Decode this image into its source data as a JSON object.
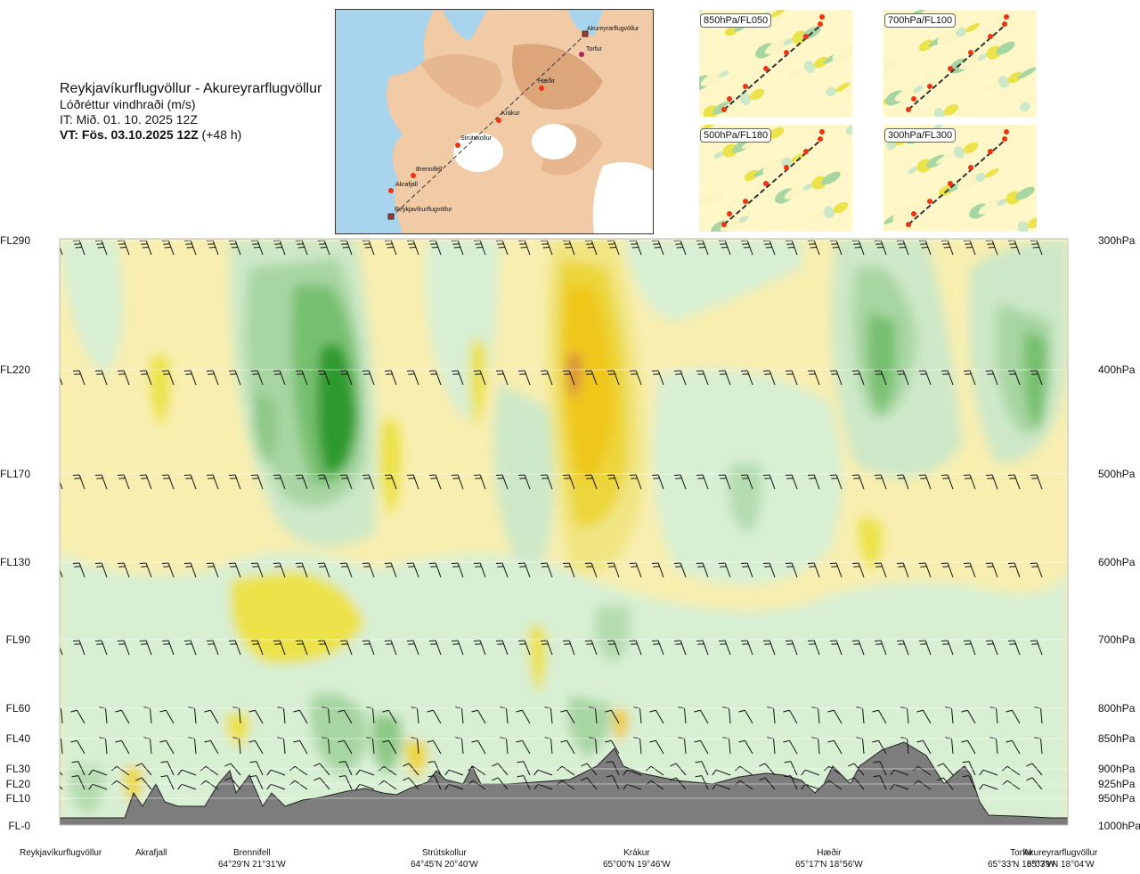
{
  "header": {
    "route_title": "Reykjavíkurflugvöllur - Akureyrarflugvöllur",
    "parameter": "Lóðréttur vindhraði (m/s)",
    "issue_time": "IT: Mið. 01. 10. 2025 12Z",
    "valid_time_bold": "VT: Fös. 03.10.2025 12Z",
    "valid_time_offset": "(+48 h)"
  },
  "route_map": {
    "labels": [
      "Akureyrarflugvöllur",
      "Torfur",
      "Hæðir",
      "Krákur",
      "Strútskollur",
      "Brennifell",
      "Akrafjall",
      "Reykjavíkurflugvöllur"
    ]
  },
  "mini_maps": [
    {
      "label": "850hPa/FL050"
    },
    {
      "label": "700hPa/FL100"
    },
    {
      "label": "500hPa/FL180"
    },
    {
      "label": "300hPa/FL300"
    }
  ],
  "levels": [
    {
      "fl": "FL290",
      "hpa": "300hPa"
    },
    {
      "fl": "FL220",
      "hpa": "400hPa"
    },
    {
      "fl": "FL170",
      "hpa": "500hPa"
    },
    {
      "fl": "FL130",
      "hpa": "600hPa"
    },
    {
      "fl": "FL90",
      "hpa": "700hPa"
    },
    {
      "fl": "FL60",
      "hpa": "800hPa"
    },
    {
      "fl": "FL40",
      "hpa": "850hPa"
    },
    {
      "fl": "FL30",
      "hpa": "900hPa"
    },
    {
      "fl": "FL20",
      "hpa": "925hPa"
    },
    {
      "fl": "FL10",
      "hpa": "950hPa"
    },
    {
      "fl": "FL-0",
      "hpa": "1000hPa"
    }
  ],
  "waypoints": [
    {
      "name": "Reykjavíkurflugvöllur",
      "coord": ""
    },
    {
      "name": "Akrafjall",
      "coord": ""
    },
    {
      "name": "Brennifell",
      "coord": "64°29'N 21°31'W"
    },
    {
      "name": "Strútskollur",
      "coord": "64°45'N 20°40'W"
    },
    {
      "name": "Krákur",
      "coord": "65°00'N 19°46'W"
    },
    {
      "name": "Hæðir",
      "coord": "65°17'N 18°56'W"
    },
    {
      "name": "Torfur",
      "coord": "65°33'N 18°07'W"
    },
    {
      "name": "Akureyrarflugvöllur",
      "coord": "65°39'N 18°04'W"
    }
  ],
  "chart_data": {
    "type": "heatmap",
    "title": "Reykjavíkurflugvöllur - Akureyrarflugvöllur",
    "variable": "Lóðréttur vindhraði (m/s)",
    "y_levels_hpa": [
      300,
      400,
      500,
      600,
      700,
      800,
      850,
      900,
      925,
      950,
      1000
    ],
    "y_levels_fl": [
      "FL290",
      "FL220",
      "FL170",
      "FL130",
      "FL90",
      "FL60",
      "FL40",
      "FL30",
      "FL20",
      "FL10",
      "FL-0"
    ],
    "x_waypoints": [
      "Reykjavíkurflugvöllur",
      "Akrafjall",
      "Brennifell",
      "Strútskollur",
      "Krákur",
      "Hæðir",
      "Torfur",
      "Akureyrarflugvöllur"
    ],
    "x_fraction_of_route": [
      0.0,
      0.08,
      0.19,
      0.38,
      0.55,
      0.74,
      0.93,
      1.0
    ],
    "color_scale": {
      "updraft": [
        "#d8efd4",
        "#b5dcb0",
        "#8ec987",
        "#5eb15a",
        "#2e9a2e"
      ],
      "downdraft": [
        "#fbf5c4",
        "#f5ea9a",
        "#ece24a",
        "#f0c81a",
        "#d8903a"
      ],
      "near_zero": "#fefef0"
    },
    "features": [
      {
        "kind": "strong updraft",
        "waypoint_region": "Brennifell–Strútskollur",
        "levels": "FL130–FL290"
      },
      {
        "kind": "strong downdraft",
        "waypoint_region": "west of Krákur",
        "levels": "FL130–FL290"
      },
      {
        "kind": "updraft",
        "waypoint_region": "Hæðir–Akureyrarflugvöllur",
        "levels": "FL170–FL290"
      }
    ],
    "terrain_color": "#808080",
    "wind_barbs": true
  }
}
